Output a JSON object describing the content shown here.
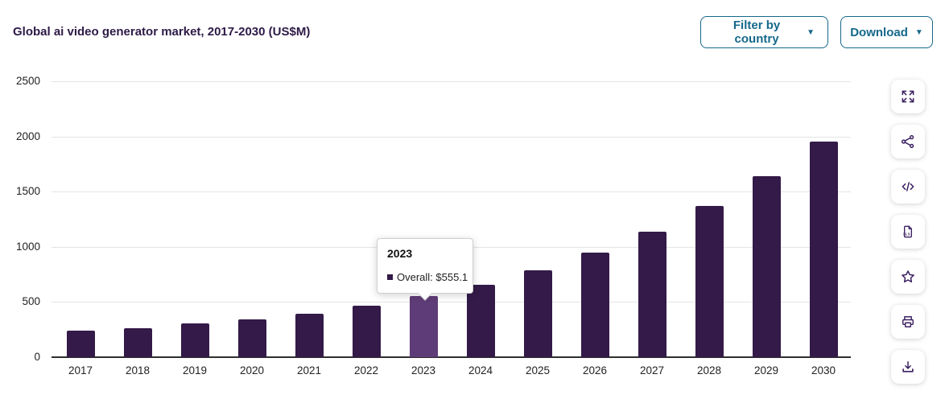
{
  "header": {
    "title": "Global ai video generator market, 2017-2030 (US$M)",
    "filter_button_label": "Filter by country",
    "download_button_label": "Download",
    "caret_glyph": "▼"
  },
  "tooltip": {
    "title": "2023",
    "text": "Overall: $555.1"
  },
  "toolbar_icons": [
    "fullscreen-icon",
    "share-icon",
    "embed-code-icon",
    "xls-file-icon",
    "favorite-star-icon",
    "print-icon",
    "download-image-icon"
  ],
  "colors": {
    "bar": "#331a48",
    "bar_highlight": "#5e3c77",
    "accent_teal": "#15688a",
    "title_purple": "#2d1a47",
    "icon_purple": "#3b2161",
    "gridline": "#e4e4e4",
    "axis_line": "#2e2e2e"
  },
  "chart_data": {
    "type": "bar",
    "title": "Global ai video generator market, 2017-2030 (US$M)",
    "xlabel": "",
    "ylabel": "",
    "categories": [
      "2017",
      "2018",
      "2019",
      "2020",
      "2021",
      "2022",
      "2023",
      "2024",
      "2025",
      "2026",
      "2027",
      "2028",
      "2029",
      "2030"
    ],
    "series": [
      {
        "name": "Overall",
        "values": [
          238,
          265,
          305,
          345,
          395,
          470,
          555.1,
          655,
          785,
          945,
          1140,
          1370,
          1640,
          1955
        ]
      }
    ],
    "ylim": [
      0,
      2500
    ],
    "yticks": [
      0,
      500,
      1000,
      1500,
      2000,
      2500
    ],
    "grid": true,
    "legend_position": "none",
    "highlighted_category": "2023",
    "highlighted_value_label": "$555.1"
  }
}
